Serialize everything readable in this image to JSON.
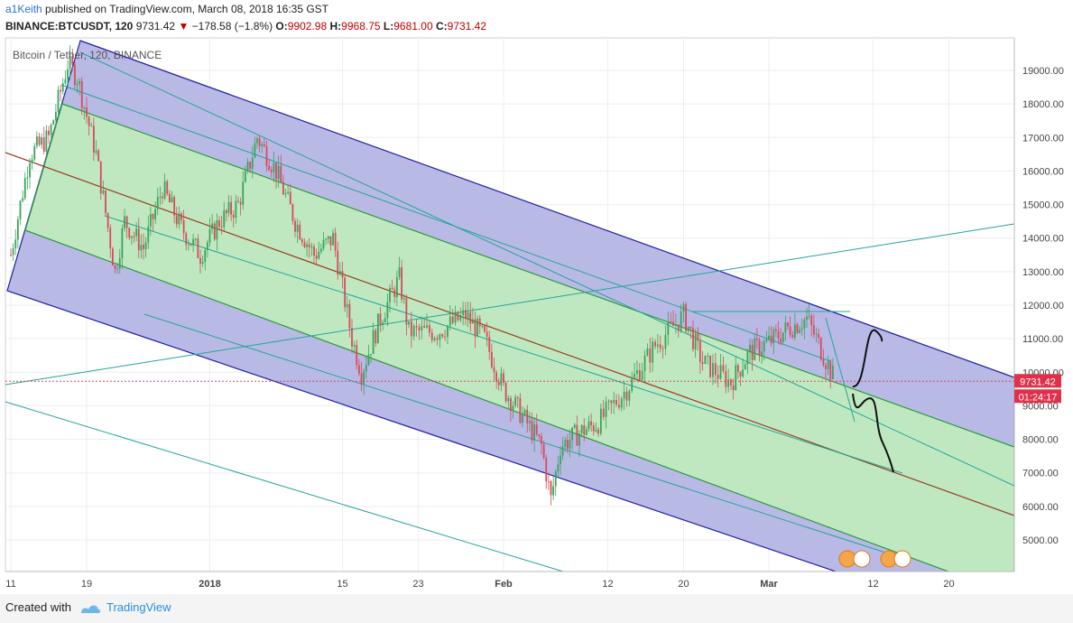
{
  "header": {
    "user": "a1Keith",
    "published_text": "published on TradingView.com, March 08, 2018 16:35 GST",
    "symbol": "BINANCE:BTCUSDT, 120",
    "last": "9731.42",
    "change": "−178.58 (−1.8%)",
    "o_label": "O:",
    "o_value": "9902.98",
    "h_label": "H:",
    "h_value": "9968.75",
    "l_label": "L:",
    "l_value": "9681.00",
    "c_label": "C:",
    "c_value": "9731.42"
  },
  "chart_title": "Bitcoin / Tether, 120, BINANCE",
  "price_tag": "9731.42",
  "countdown_tag": "01:24:17",
  "footer": {
    "created": "Created with",
    "brand": "TradingView"
  },
  "colors": {
    "outer_channel": "#b9b9e6",
    "inner_channel": "#bfe8c1",
    "median": "#9a3b1f",
    "teal": "#22a59a",
    "up_candle": "#3aa35a",
    "down_candle": "#d9495a"
  },
  "chart_data": {
    "type": "candlestick",
    "title": "Bitcoin / Tether, 120, BINANCE",
    "y_ticks": [
      "19000.00",
      "18000.00",
      "17000.00",
      "16000.00",
      "15000.00",
      "14000.00",
      "13000.00",
      "12000.00",
      "11000.00",
      "10000.00",
      "9000.00",
      "8000.00",
      "7000.00",
      "6000.00",
      "5000.00"
    ],
    "ylim": [
      4000,
      19800
    ],
    "x_ticks": [
      "11",
      "19",
      "2018",
      "15",
      "23",
      "Feb",
      "12",
      "20",
      "Mar",
      "12",
      "20"
    ],
    "price_path": [
      {
        "t": "Dec 11",
        "p": 13500
      },
      {
        "t": "Dec 13",
        "p": 16500
      },
      {
        "t": "Dec 15",
        "p": 17000
      },
      {
        "t": "Dec 17",
        "p": 19200
      },
      {
        "t": "Dec 18",
        "p": 18800
      },
      {
        "t": "Dec 20",
        "p": 16500
      },
      {
        "t": "Dec 22",
        "p": 13000
      },
      {
        "t": "Dec 23",
        "p": 14500
      },
      {
        "t": "Dec 25",
        "p": 13700
      },
      {
        "t": "Dec 27",
        "p": 15500
      },
      {
        "t": "Dec 29",
        "p": 14300
      },
      {
        "t": "Dec 31",
        "p": 13500
      },
      {
        "t": "Jan 2",
        "p": 14500
      },
      {
        "t": "Jan 4",
        "p": 15000
      },
      {
        "t": "Jan 6",
        "p": 17000
      },
      {
        "t": "Jan 8",
        "p": 16000
      },
      {
        "t": "Jan 10",
        "p": 14500
      },
      {
        "t": "Jan 12",
        "p": 13500
      },
      {
        "t": "Jan 14",
        "p": 14000
      },
      {
        "t": "Jan 16",
        "p": 11000
      },
      {
        "t": "Jan 17",
        "p": 10000
      },
      {
        "t": "Jan 19",
        "p": 11600
      },
      {
        "t": "Jan 21",
        "p": 12800
      },
      {
        "t": "Jan 22",
        "p": 11200
      },
      {
        "t": "Jan 25",
        "p": 11200
      },
      {
        "t": "Jan 28",
        "p": 11700
      },
      {
        "t": "Jan 30",
        "p": 11000
      },
      {
        "t": "Feb 1",
        "p": 9500
      },
      {
        "t": "Feb 3",
        "p": 8700
      },
      {
        "t": "Feb 5",
        "p": 7800
      },
      {
        "t": "Feb 6",
        "p": 6200
      },
      {
        "t": "Feb 7",
        "p": 7800
      },
      {
        "t": "Feb 9",
        "p": 8200
      },
      {
        "t": "Feb 11",
        "p": 8500
      },
      {
        "t": "Feb 14",
        "p": 9500
      },
      {
        "t": "Feb 17",
        "p": 10800
      },
      {
        "t": "Feb 20",
        "p": 11700
      },
      {
        "t": "Feb 22",
        "p": 10300
      },
      {
        "t": "Feb 25",
        "p": 9700
      },
      {
        "t": "Feb 27",
        "p": 10600
      },
      {
        "t": "Mar 1",
        "p": 10900
      },
      {
        "t": "Mar 3",
        "p": 11300
      },
      {
        "t": "Mar 5",
        "p": 11600
      },
      {
        "t": "Mar 6",
        "p": 11000
      },
      {
        "t": "Mar 8",
        "p": 9731.42
      }
    ],
    "last_price": 9731.42,
    "drawings": [
      "descending channel (outer)",
      "inner channel",
      "median line",
      "trend lines",
      "resistance line near 11800",
      "projected paths"
    ]
  }
}
